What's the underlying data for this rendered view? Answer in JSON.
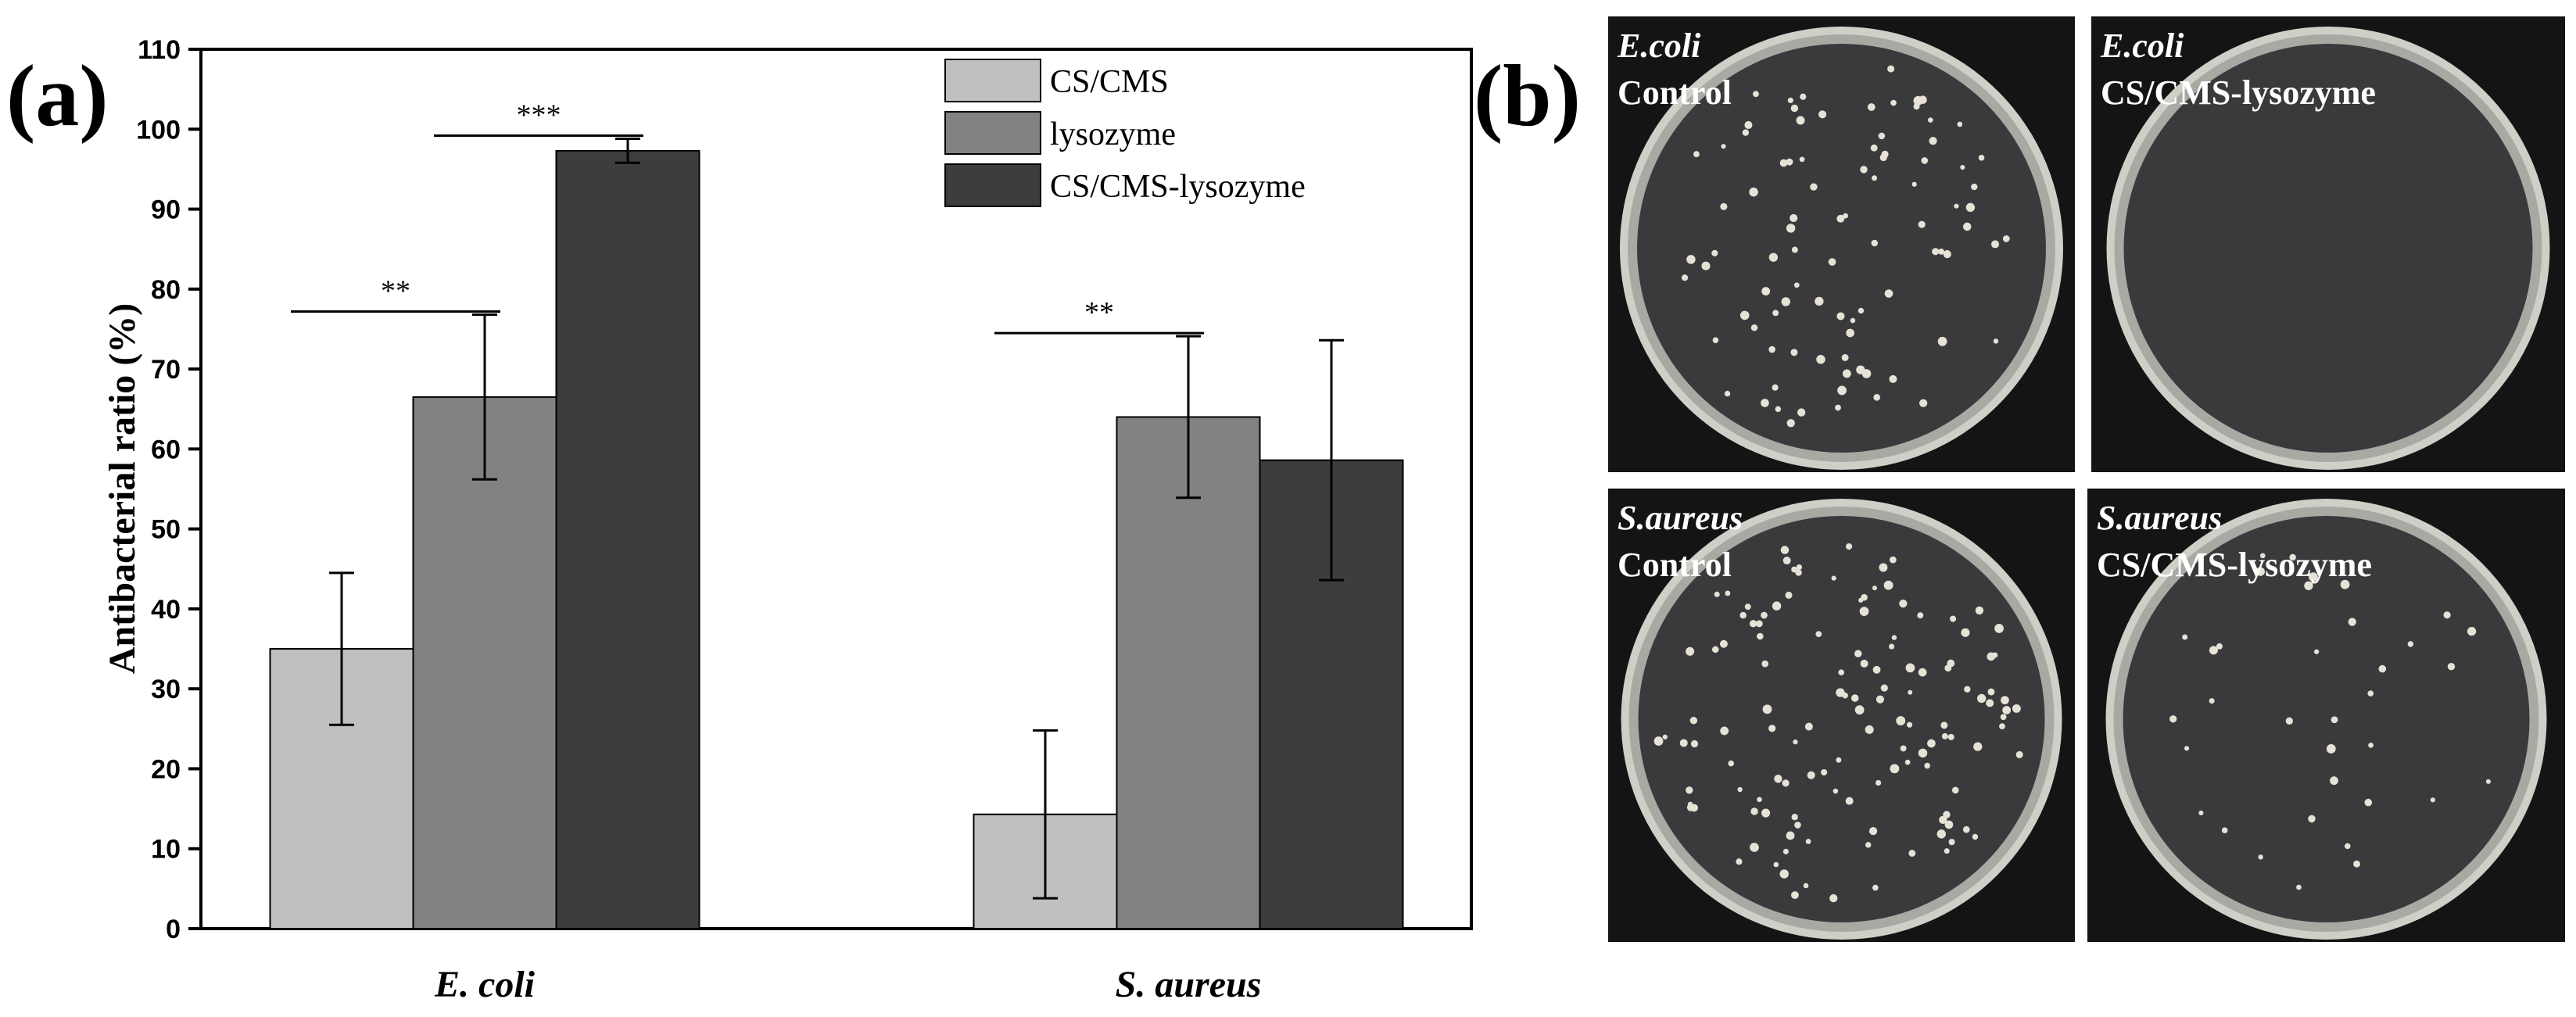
{
  "panels": {
    "a": "(a)",
    "b": "(b)"
  },
  "chart_data": {
    "type": "bar",
    "ylabel": "Antibacterial ratio (%)",
    "categories": [
      "E. coli",
      "S. aureus"
    ],
    "series": [
      {
        "name": "CS/CMS",
        "color": "#c0c0c0",
        "values": [
          35,
          14.3
        ],
        "errors": [
          9.5,
          10.5
        ]
      },
      {
        "name": "lysozyme",
        "color": "#828282",
        "values": [
          66.5,
          64
        ],
        "errors": [
          10.3,
          10.1
        ]
      },
      {
        "name": "CS/CMS-lysozyme",
        "color": "#3d3d3d",
        "values": [
          97.3,
          58.6
        ],
        "errors": [
          1.5,
          15
        ]
      }
    ],
    "ylim": [
      0,
      110
    ],
    "yticks": [
      0,
      10,
      20,
      30,
      40,
      50,
      60,
      70,
      80,
      90,
      100,
      110
    ],
    "legend": "upper right",
    "annotations": [
      {
        "text": "**",
        "category": 0,
        "series": [
          0,
          1
        ]
      },
      {
        "text": "***",
        "category": 0,
        "series": [
          1,
          2
        ]
      },
      {
        "text": "**",
        "category": 1,
        "series": [
          0,
          1
        ]
      }
    ]
  },
  "photos": [
    {
      "organism": "E.coli",
      "treatment": "Control"
    },
    {
      "organism": "E.coli",
      "treatment": "CS/CMS-lysozyme"
    },
    {
      "organism": "S.aureus",
      "treatment": "Control"
    },
    {
      "organism": "S.aureus",
      "treatment": "CS/CMS-lysozyme"
    }
  ]
}
